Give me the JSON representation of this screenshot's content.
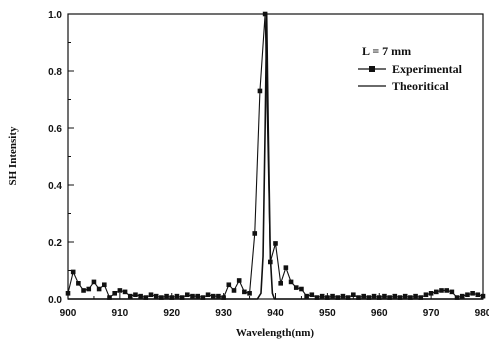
{
  "chart_data": {
    "type": "line",
    "title": "",
    "xlabel": "Wavelength(nm)",
    "ylabel": "SH Intensity",
    "xlim": [
      900,
      980
    ],
    "ylim": [
      0,
      1.0
    ],
    "x_ticks": [
      "900",
      "910",
      "920",
      "930",
      "940",
      "950",
      "960",
      "970",
      "980"
    ],
    "y_ticks": [
      "0.0",
      "0.2",
      "0.4",
      "0.6",
      "0.8",
      "1.0"
    ],
    "legend_title": "L = 7 mm",
    "legend_position": "top-right",
    "grid": false,
    "series": [
      {
        "name": "Experimental",
        "marker": "square",
        "color": "#111111",
        "x": [
          900,
          901,
          902,
          903,
          904,
          905,
          906,
          907,
          908,
          909,
          910,
          911,
          912,
          913,
          914,
          915,
          916,
          917,
          918,
          919,
          920,
          921,
          922,
          923,
          924,
          925,
          926,
          927,
          928,
          929,
          930,
          931,
          932,
          933,
          934,
          935,
          936,
          937,
          938,
          939,
          940,
          941,
          942,
          943,
          944,
          945,
          946,
          947,
          948,
          949,
          950,
          951,
          952,
          953,
          954,
          955,
          956,
          957,
          958,
          959,
          960,
          961,
          962,
          963,
          964,
          965,
          966,
          967,
          968,
          969,
          970,
          971,
          972,
          973,
          974,
          975,
          976,
          977,
          978,
          979,
          980
        ],
        "y": [
          0.02,
          0.095,
          0.055,
          0.03,
          0.035,
          0.06,
          0.035,
          0.05,
          0.005,
          0.02,
          0.03,
          0.025,
          0.01,
          0.015,
          0.01,
          0.005,
          0.015,
          0.01,
          0.005,
          0.01,
          0.005,
          0.01,
          0.005,
          0.015,
          0.01,
          0.01,
          0.005,
          0.015,
          0.01,
          0.01,
          0.005,
          0.05,
          0.03,
          0.065,
          0.025,
          0.02,
          0.23,
          0.73,
          1.0,
          0.13,
          0.195,
          0.055,
          0.11,
          0.06,
          0.04,
          0.035,
          0.01,
          0.015,
          0.005,
          0.01,
          0.005,
          0.01,
          0.005,
          0.01,
          0.005,
          0.015,
          0.005,
          0.01,
          0.005,
          0.01,
          0.005,
          0.01,
          0.005,
          0.01,
          0.005,
          0.01,
          0.005,
          0.01,
          0.005,
          0.015,
          0.02,
          0.025,
          0.03,
          0.03,
          0.025,
          0.005,
          0.01,
          0.015,
          0.02,
          0.015,
          0.01
        ]
      },
      {
        "name": "Theoritical",
        "marker": "none",
        "color": "#111111",
        "x": [
          900,
          936.5,
          937.2,
          937.6,
          938.0,
          938.3,
          938.6,
          939.0,
          939.4,
          939.8,
          940.5,
          980
        ],
        "y": [
          0.0,
          0.0,
          0.02,
          0.15,
          0.6,
          1.0,
          0.6,
          0.15,
          0.02,
          0.0,
          0.0,
          0.0
        ]
      }
    ]
  }
}
